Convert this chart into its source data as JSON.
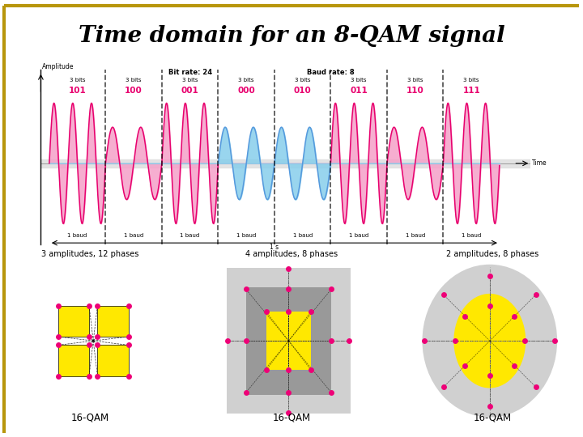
{
  "title": "Time domain for an 8-QAM signal",
  "border_color": "#b8960c",
  "background": "#ffffff",
  "symbols": [
    "101",
    "100",
    "001",
    "000",
    "010",
    "011",
    "110",
    "111"
  ],
  "amplitudes": [
    1.0,
    0.6,
    1.0,
    0.6,
    0.6,
    1.0,
    0.6,
    1.0
  ],
  "frequencies": [
    3,
    2,
    3,
    2,
    2,
    3,
    2,
    3
  ],
  "pink_segs": [
    0,
    1,
    2,
    5,
    6,
    7
  ],
  "blue_segs": [
    3,
    4
  ],
  "pink_color": "#E8006E",
  "pink_fill": "#F5A0C8",
  "blue_fill": "#87CEEB",
  "blue_line": "#5599DD",
  "axis_label_x": "Time",
  "axis_label_y": "Amplitude",
  "bit_rate_text": "Bit rate: 24",
  "baud_rate_text": "Baud rate: 8",
  "bottom_label": "1 s",
  "diagram1_title": "3 amplitudes, 12 phases",
  "diagram2_title": "4 amplitudes, 8 phases",
  "diagram3_title": "2 amplitudes, 8 phases",
  "diagram_label": "16-QAM",
  "dot_color": "#EE0077",
  "yellow_color": "#FFE800",
  "gray_light": "#D0D0D0",
  "gray_medium": "#999999"
}
